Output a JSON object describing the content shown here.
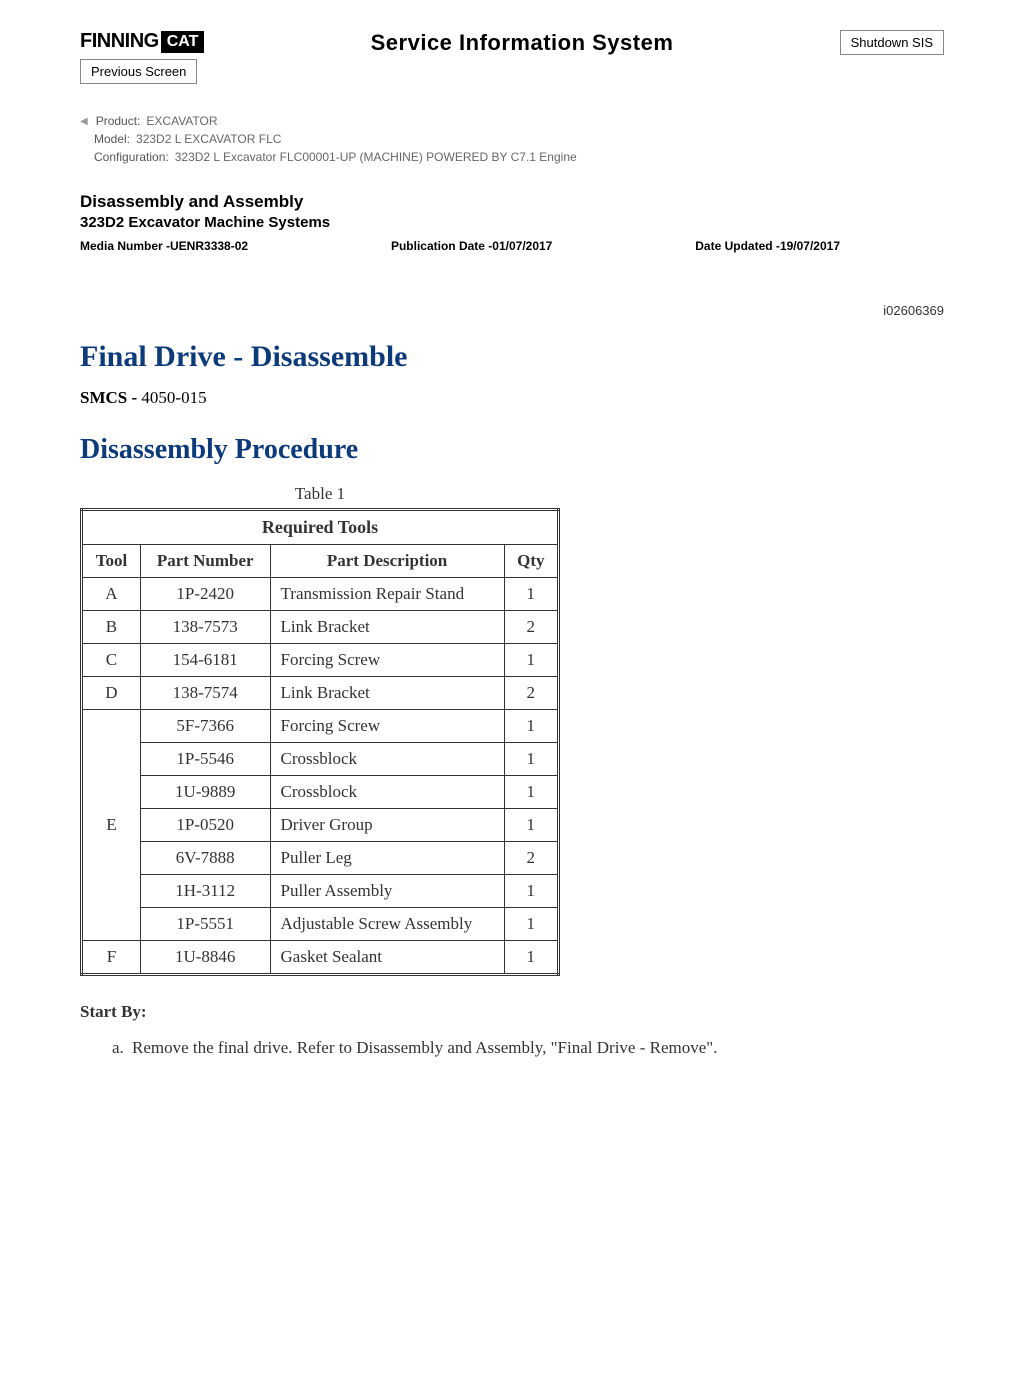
{
  "header": {
    "logo_text": "FINNING",
    "cat_badge": "CAT",
    "sis_title": "Service Information System",
    "shutdown_btn": "Shutdown SIS",
    "previous_btn": "Previous Screen"
  },
  "meta": {
    "product_label": "Product:",
    "product_value": "EXCAVATOR",
    "model_label": "Model:",
    "model_value": "323D2 L EXCAVATOR FLC",
    "config_label": "Configuration:",
    "config_value": "323D2 L Excavator FLC00001-UP (MACHINE) POWERED BY C7.1 Engine"
  },
  "doc": {
    "title": "Disassembly and Assembly",
    "subtitle": "323D2 Excavator Machine Systems",
    "media_label": "Media Number -",
    "media_value": "UENR3338-02",
    "pub_label": "Publication Date -",
    "pub_value": "01/07/2017",
    "updated_label": "Date Updated -",
    "updated_value": "19/07/2017",
    "doc_id": "i02606369"
  },
  "content": {
    "main_heading": "Final Drive - Disassemble",
    "smcs_label": "SMCS - ",
    "smcs_value": "4050-015",
    "sub_heading": "Disassembly Procedure",
    "table_caption": "Table 1",
    "table_title": "Required Tools",
    "columns": [
      "Tool",
      "Part Number",
      "Part Description",
      "Qty"
    ],
    "rows": [
      {
        "tool": "A",
        "rowspan": 1,
        "pn": "1P-2420",
        "desc": "Transmission Repair Stand",
        "qty": "1"
      },
      {
        "tool": "B",
        "rowspan": 1,
        "pn": "138-7573",
        "desc": "Link Bracket",
        "qty": "2"
      },
      {
        "tool": "C",
        "rowspan": 1,
        "pn": "154-6181",
        "desc": "Forcing Screw",
        "qty": "1"
      },
      {
        "tool": "D",
        "rowspan": 1,
        "pn": "138-7574",
        "desc": "Link Bracket",
        "qty": "2"
      },
      {
        "tool": "E",
        "rowspan": 7,
        "pn": "5F-7366",
        "desc": "Forcing Screw",
        "qty": "1"
      },
      {
        "tool": "",
        "rowspan": 0,
        "pn": "1P-5546",
        "desc": "Crossblock",
        "qty": "1"
      },
      {
        "tool": "",
        "rowspan": 0,
        "pn": "1U-9889",
        "desc": "Crossblock",
        "qty": "1"
      },
      {
        "tool": "",
        "rowspan": 0,
        "pn": "1P-0520",
        "desc": "Driver Group",
        "qty": "1"
      },
      {
        "tool": "",
        "rowspan": 0,
        "pn": "6V-7888",
        "desc": "Puller Leg",
        "qty": "2"
      },
      {
        "tool": "",
        "rowspan": 0,
        "pn": "1H-3112",
        "desc": "Puller Assembly",
        "qty": "1"
      },
      {
        "tool": "",
        "rowspan": 0,
        "pn": "1P-5551",
        "desc": "Adjustable Screw Assembly",
        "qty": "1"
      },
      {
        "tool": "F",
        "rowspan": 1,
        "pn": "1U-8846",
        "desc": "Gasket Sealant",
        "qty": "1"
      }
    ],
    "start_by": "Start By:",
    "start_item": "Remove the final drive. Refer to Disassembly and Assembly, \"Final Drive - Remove\"."
  },
  "colors": {
    "heading_blue": "#0d3b7a",
    "meta_gray": "#666666",
    "border": "#333333"
  }
}
